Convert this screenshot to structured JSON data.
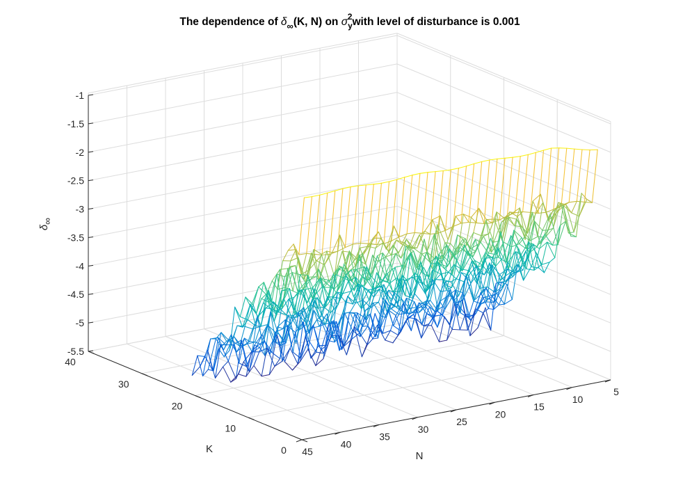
{
  "chart_data": {
    "type": "surface-mesh",
    "title": {
      "part1": "The dependence of ",
      "delta": "δ",
      "inf": "∞",
      "part2": "(K, N) on ",
      "sigma": "σ",
      "sub_y": "y",
      "sup_2": "2",
      "part3": "with level of disturbance is 0.001"
    },
    "zlabel": {
      "delta": "δ",
      "inf": "∞"
    },
    "xlabel": "N",
    "ylabel": "K",
    "x_range": [
      5,
      45
    ],
    "y_range": [
      0,
      40
    ],
    "z_range": [
      -5.5,
      -1
    ],
    "x_ticks": [
      "5",
      "10",
      "15",
      "20",
      "25",
      "30",
      "35",
      "40",
      "45"
    ],
    "y_ticks": [
      "0",
      "10",
      "20",
      "30",
      "40"
    ],
    "z_ticks": [
      "-1",
      "-1.5",
      "-2",
      "-2.5",
      "-3",
      "-3.5",
      "-4",
      "-4.5",
      "-5",
      "-5.5"
    ],
    "x_tick_values": [
      5,
      10,
      15,
      20,
      25,
      30,
      35,
      40,
      45
    ],
    "y_tick_values": [
      0,
      10,
      20,
      30,
      40
    ],
    "z_tick_values": [
      -1,
      -1.5,
      -2,
      -2.5,
      -3,
      -3.5,
      -4,
      -4.5,
      -5,
      -5.5
    ],
    "grid": true,
    "colormap": "parula",
    "surface": {
      "N_range": [
        6,
        44
      ],
      "K_range": [
        1,
        22
      ],
      "z_at_K1": -1.3,
      "z_at_K2": -2.4,
      "z_at_K22": -5.2,
      "deep_minima_N": [
        8,
        12,
        31,
        34,
        39
      ],
      "deep_minima_z": -5.5
    }
  }
}
